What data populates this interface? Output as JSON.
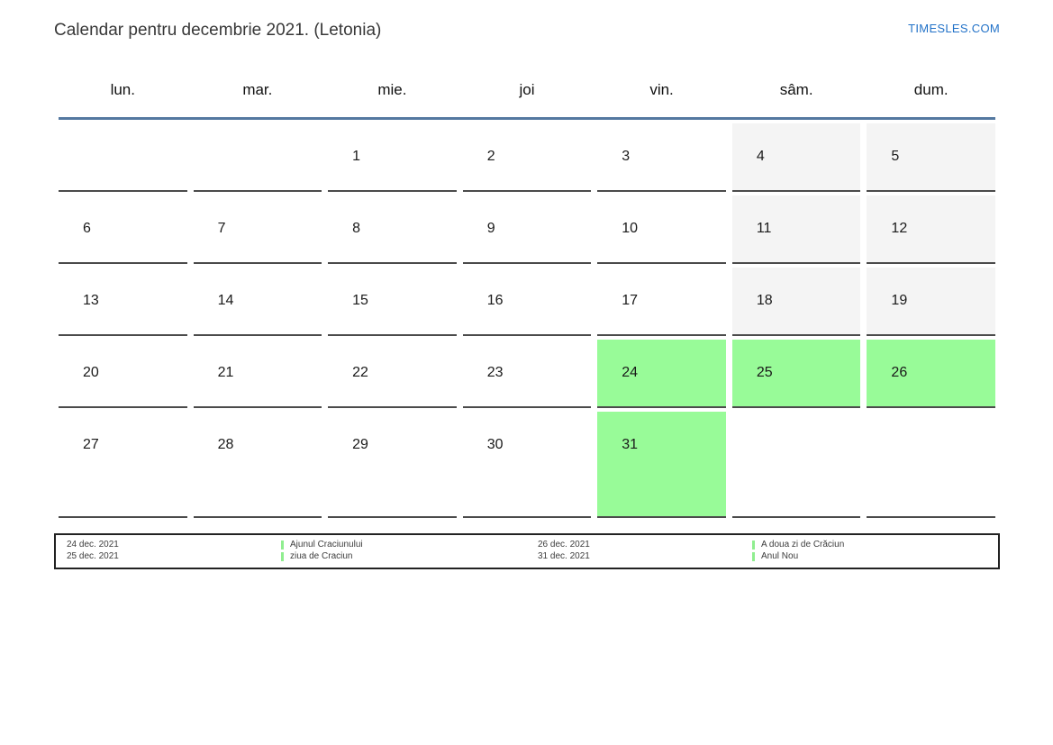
{
  "header": {
    "title": "Calendar pentru decembrie 2021. (Letonia)",
    "site_link": "TIMESLES.COM"
  },
  "weekdays": [
    "lun.",
    "mar.",
    "mie.",
    "joi",
    "vin.",
    "sâm.",
    "dum."
  ],
  "month_grid": {
    "cells": [
      {
        "day": "",
        "variant": "empty"
      },
      {
        "day": "",
        "variant": "empty"
      },
      {
        "day": "1",
        "variant": "workday"
      },
      {
        "day": "2",
        "variant": "workday"
      },
      {
        "day": "3",
        "variant": "workday"
      },
      {
        "day": "4",
        "variant": "weekend"
      },
      {
        "day": "5",
        "variant": "weekend"
      },
      {
        "day": "6",
        "variant": "workday"
      },
      {
        "day": "7",
        "variant": "workday"
      },
      {
        "day": "8",
        "variant": "workday"
      },
      {
        "day": "9",
        "variant": "workday"
      },
      {
        "day": "10",
        "variant": "workday"
      },
      {
        "day": "11",
        "variant": "weekend"
      },
      {
        "day": "12",
        "variant": "weekend"
      },
      {
        "day": "13",
        "variant": "workday"
      },
      {
        "day": "14",
        "variant": "workday"
      },
      {
        "day": "15",
        "variant": "workday"
      },
      {
        "day": "16",
        "variant": "workday"
      },
      {
        "day": "17",
        "variant": "workday"
      },
      {
        "day": "18",
        "variant": "weekend"
      },
      {
        "day": "19",
        "variant": "weekend"
      },
      {
        "day": "20",
        "variant": "workday"
      },
      {
        "day": "21",
        "variant": "workday"
      },
      {
        "day": "22",
        "variant": "workday"
      },
      {
        "day": "23",
        "variant": "workday"
      },
      {
        "day": "24",
        "variant": "holiday"
      },
      {
        "day": "25",
        "variant": "holiday"
      },
      {
        "day": "26",
        "variant": "holiday"
      },
      {
        "day": "27",
        "variant": "workday"
      },
      {
        "day": "28",
        "variant": "workday"
      },
      {
        "day": "29",
        "variant": "workday"
      },
      {
        "day": "30",
        "variant": "workday"
      },
      {
        "day": "31",
        "variant": "holiday"
      },
      {
        "day": "",
        "variant": "empty"
      },
      {
        "day": "",
        "variant": "empty"
      }
    ]
  },
  "legend": {
    "columns": [
      {
        "entries": [
          {
            "date": "24 dec. 2021",
            "holiday": "Ajunul Craciunului"
          },
          {
            "date": "25 dec. 2021",
            "holiday": "ziua de Craciun"
          }
        ]
      },
      {
        "entries": [
          {
            "date": "26 dec. 2021",
            "holiday": "A doua zi de Crăciun"
          },
          {
            "date": "31 dec. 2021",
            "holiday": "Anul Nou"
          }
        ]
      }
    ]
  },
  "colors": {
    "holiday_green": "#98fb98",
    "weekend_gray": "#f4f4f4",
    "header_line_blue": "#5478a0",
    "site_link_blue": "#2272c8",
    "legend_marker_green": "#90ee90"
  }
}
